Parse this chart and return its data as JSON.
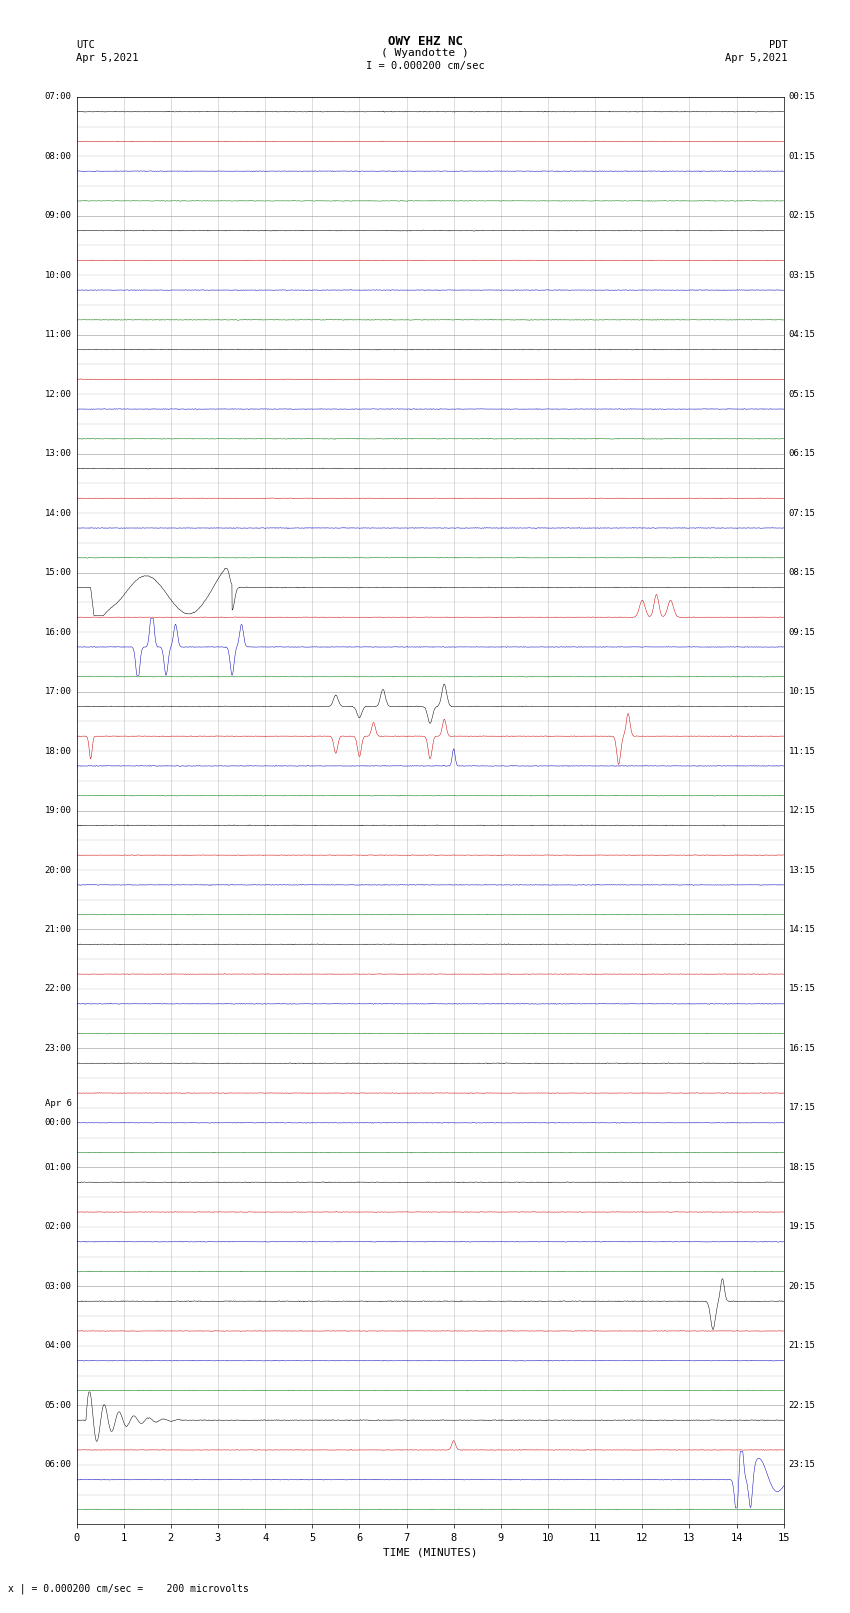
{
  "title_line1": "OWY EHZ NC",
  "title_line2": "( Wyandotte )",
  "scale_text": "I = 0.000200 cm/sec",
  "utc_label": "UTC",
  "utc_date": "Apr 5,2021",
  "pdt_label": "PDT",
  "pdt_date": "Apr 5,2021",
  "bottom_label": "x | = 0.000200 cm/sec =    200 microvolts",
  "xlabel": "TIME (MINUTES)",
  "left_times": [
    "07:00",
    "",
    "08:00",
    "",
    "09:00",
    "",
    "10:00",
    "",
    "11:00",
    "",
    "12:00",
    "",
    "13:00",
    "",
    "14:00",
    "",
    "15:00",
    "",
    "16:00",
    "",
    "17:00",
    "",
    "18:00",
    "",
    "19:00",
    "",
    "20:00",
    "",
    "21:00",
    "",
    "22:00",
    "",
    "23:00",
    "",
    "Apr 6\n00:00",
    "",
    "01:00",
    "",
    "02:00",
    "",
    "03:00",
    "",
    "04:00",
    "",
    "05:00",
    "",
    "06:00",
    ""
  ],
  "right_times": [
    "00:15",
    "",
    "01:15",
    "",
    "02:15",
    "",
    "03:15",
    "",
    "04:15",
    "",
    "05:15",
    "",
    "06:15",
    "",
    "07:15",
    "",
    "08:15",
    "",
    "09:15",
    "",
    "10:15",
    "",
    "11:15",
    "",
    "12:15",
    "",
    "13:15",
    "",
    "14:15",
    "",
    "15:15",
    "",
    "16:15",
    "",
    "17:15",
    "",
    "18:15",
    "",
    "19:15",
    "",
    "20:15",
    "",
    "21:15",
    "",
    "22:15",
    "",
    "23:15",
    ""
  ],
  "n_rows": 48,
  "x_min": 0,
  "x_max": 15,
  "x_ticks": [
    0,
    1,
    2,
    3,
    4,
    5,
    6,
    7,
    8,
    9,
    10,
    11,
    12,
    13,
    14,
    15
  ],
  "bg_color": "#ffffff",
  "colors": [
    "#000000",
    "#cc0000",
    "#0000bb",
    "#007700"
  ],
  "grid_color": "#999999",
  "noise_amp_black": 0.025,
  "noise_amp_red": 0.018,
  "noise_amp_blue": 0.02,
  "noise_amp_green": 0.022
}
